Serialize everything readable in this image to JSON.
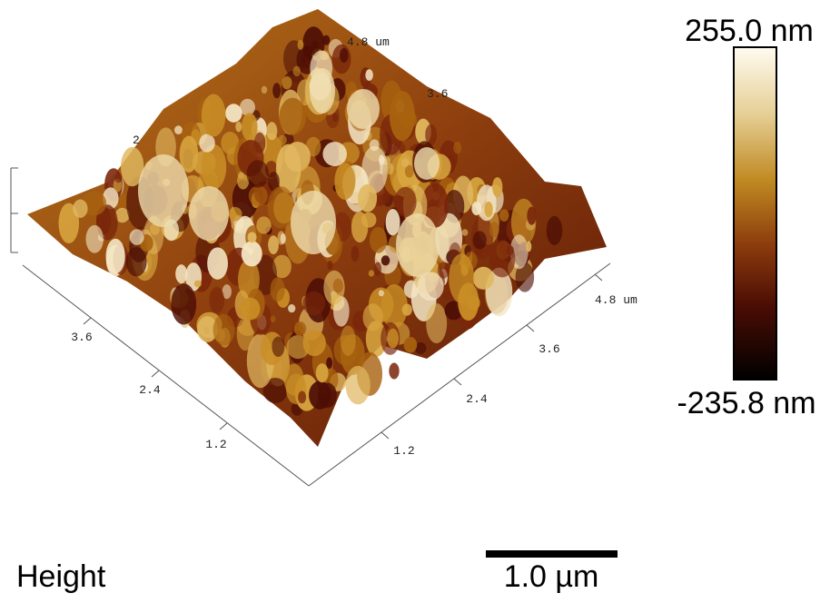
{
  "colorbar": {
    "max_label": "255.0 nm",
    "min_label": "-235.8 nm"
  },
  "axes": {
    "left_ticks": [
      "1.2",
      "2.4",
      "3.6"
    ],
    "right_ticks": [
      "1.2",
      "2.4",
      "3.6",
      "4.8 um"
    ],
    "top_ticks": [
      "2",
      "3.6",
      "4.8 um"
    ]
  },
  "caption": "Height",
  "scale_bar": "1.0 µm"
}
